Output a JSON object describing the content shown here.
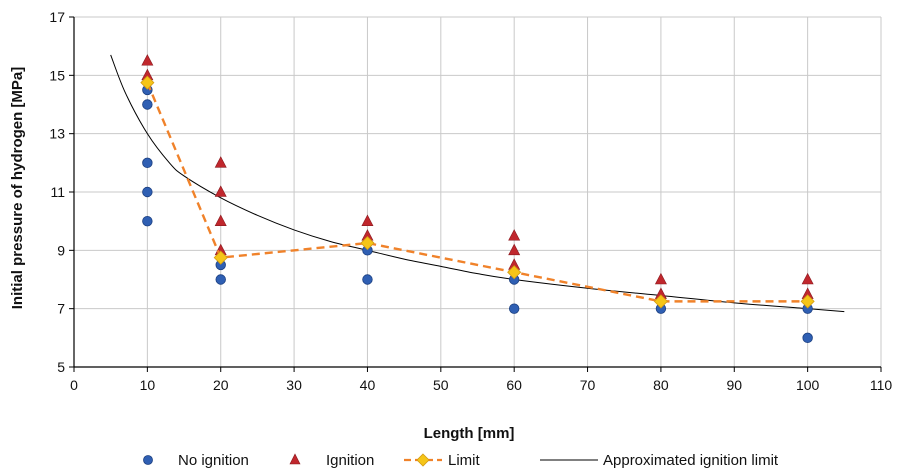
{
  "chart_data": {
    "type": "scatter",
    "xlabel": "Length [mm]",
    "ylabel": "Initial pressure of hydrogen [MPa]",
    "xlim": [
      0,
      110
    ],
    "ylim": [
      5,
      17
    ],
    "x_ticks": [
      0,
      10,
      20,
      30,
      40,
      50,
      60,
      70,
      80,
      90,
      100,
      110
    ],
    "y_ticks": [
      5,
      7,
      9,
      11,
      13,
      15,
      17
    ],
    "grid": true,
    "legend_position": "bottom",
    "colors": {
      "no_ignition": "#2f5fb3",
      "ignition": "#c0272d",
      "limit_line": "#f0822a",
      "limit_marker": "#f5c518",
      "approx_line": "#000000",
      "grid": "#c9c9c9"
    },
    "series": [
      {
        "name": "No ignition",
        "kind": "points",
        "marker": "circle",
        "points": [
          [
            10,
            10
          ],
          [
            10,
            11
          ],
          [
            10,
            12
          ],
          [
            10,
            14
          ],
          [
            10,
            14.5
          ],
          [
            20,
            8
          ],
          [
            20,
            8.5
          ],
          [
            40,
            8
          ],
          [
            40,
            9
          ],
          [
            60,
            7
          ],
          [
            60,
            8
          ],
          [
            80,
            7
          ],
          [
            100,
            6
          ],
          [
            100,
            7
          ]
        ]
      },
      {
        "name": "Ignition",
        "kind": "points",
        "marker": "triangle",
        "points": [
          [
            10,
            15
          ],
          [
            10,
            15.5
          ],
          [
            20,
            9
          ],
          [
            20,
            10
          ],
          [
            20,
            11
          ],
          [
            20,
            12
          ],
          [
            40,
            9.5
          ],
          [
            40,
            10
          ],
          [
            60,
            8.5
          ],
          [
            60,
            9
          ],
          [
            60,
            9.5
          ],
          [
            80,
            7.5
          ],
          [
            80,
            8
          ],
          [
            100,
            7.5
          ],
          [
            100,
            8
          ]
        ]
      },
      {
        "name": "Limit",
        "kind": "dashed-line",
        "marker": "diamond",
        "points": [
          [
            10,
            14.75
          ],
          [
            20,
            8.75
          ],
          [
            40,
            9.25
          ],
          [
            60,
            8.25
          ],
          [
            80,
            7.25
          ],
          [
            100,
            7.25
          ]
        ]
      },
      {
        "name": "Approximated ignition limit",
        "kind": "curve",
        "points": [
          [
            5,
            15.7
          ],
          [
            7,
            14.4
          ],
          [
            10,
            13.0
          ],
          [
            13,
            12.0
          ],
          [
            15,
            11.55
          ],
          [
            20,
            10.8
          ],
          [
            25,
            10.2
          ],
          [
            30,
            9.7
          ],
          [
            35,
            9.3
          ],
          [
            40,
            9.0
          ],
          [
            45,
            8.7
          ],
          [
            50,
            8.45
          ],
          [
            55,
            8.2
          ],
          [
            60,
            8.0
          ],
          [
            70,
            7.7
          ],
          [
            80,
            7.45
          ],
          [
            90,
            7.2
          ],
          [
            100,
            7.0
          ],
          [
            105,
            6.9
          ]
        ]
      }
    ]
  }
}
